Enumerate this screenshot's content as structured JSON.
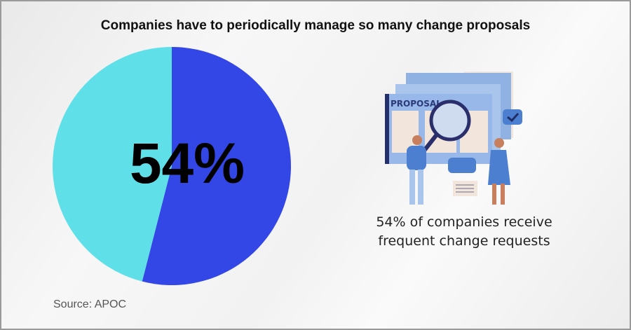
{
  "title": "Companies have to periodically manage so many change proposals",
  "big_label": "54%",
  "caption": {
    "line1": "54% of companies receive",
    "line2": "frequent change requests"
  },
  "source": "Source: APOC",
  "illustration": {
    "label": "PROPOSAL"
  },
  "chart_data": {
    "type": "pie",
    "title": "Companies have to periodically manage so many change proposals",
    "slices": [
      {
        "value": 54,
        "color": "#3346e6"
      },
      {
        "value": 46,
        "color": "#5fe0e8"
      }
    ],
    "start_angle": "top, clockwise",
    "center_label": "54%"
  }
}
